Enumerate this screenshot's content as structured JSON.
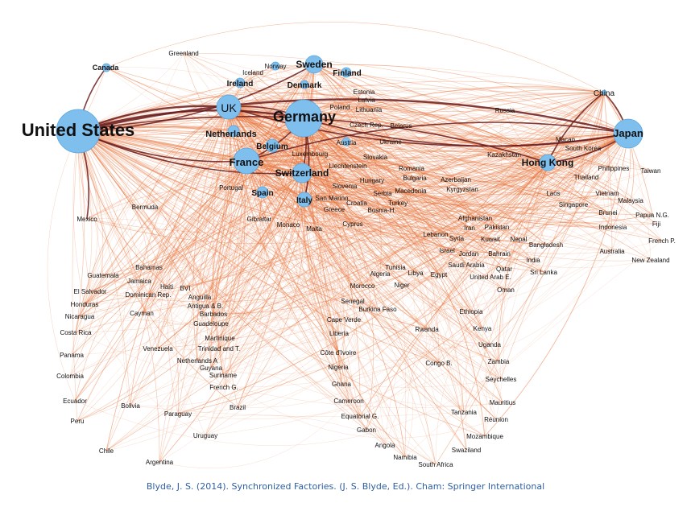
{
  "caption": "Blyde, J. S. (2014). Synchronized Factories. (J. S. Blyde, Ed.). Cham: Springer International",
  "colors": {
    "edge": "#e8743b",
    "strong_edge": "#6b1a1a",
    "node": "#7fbfee",
    "node_stroke": "#5aa6dc"
  },
  "hubs": [
    "United States",
    "Germany",
    "UK",
    "France",
    "Switzerland",
    "Japan",
    "Hong Kong",
    "Sweden",
    "China",
    "Italy"
  ],
  "nodes": [
    {
      "id": "United States",
      "label": "United States",
      "weight": 5,
      "bold": true
    },
    {
      "id": "Germany",
      "label": "Germany",
      "weight": 4,
      "bold": true
    },
    {
      "id": "UK",
      "label": "UK",
      "weight": 3
    },
    {
      "id": "France",
      "label": "France",
      "weight": 3,
      "bold": true
    },
    {
      "id": "Switzerland",
      "label": "Switzerland",
      "weight": 2.5,
      "bold": true
    },
    {
      "id": "Japan",
      "label": "Japan",
      "weight": 3,
      "bold": true
    },
    {
      "id": "Hong Kong",
      "label": "Hong Kong",
      "weight": 2,
      "bold": true
    },
    {
      "id": "Sweden",
      "label": "Sweden",
      "weight": 2,
      "bold": true
    },
    {
      "id": "Canada",
      "label": "Canada",
      "weight": 1,
      "bold": true
    },
    {
      "id": "Norway",
      "label": "Norway",
      "weight": 1
    },
    {
      "id": "Finland",
      "label": "Finland",
      "weight": 1,
      "bold": true
    },
    {
      "id": "Denmark",
      "label": "Denmark",
      "weight": 1,
      "bold": true
    },
    {
      "id": "Ireland",
      "label": "Ireland",
      "weight": 1,
      "bold": true
    },
    {
      "id": "Netherlands",
      "label": "Netherlands",
      "weight": 1.2,
      "bold": true
    },
    {
      "id": "Belgium",
      "label": "Belgium",
      "weight": 1.2,
      "bold": true
    },
    {
      "id": "Italy",
      "label": "Italy",
      "weight": 1.5,
      "bold": true
    },
    {
      "id": "Spain",
      "label": "Spain",
      "weight": 1.2,
      "bold": true
    },
    {
      "id": "Austria",
      "label": "Austria",
      "weight": 1
    },
    {
      "id": "China",
      "label": "China",
      "weight": 0
    },
    {
      "id": "Greenland",
      "label": "Greenland"
    },
    {
      "id": "Iceland",
      "label": "Iceland"
    },
    {
      "id": "Estonia",
      "label": "Estonia"
    },
    {
      "id": "Latvia",
      "label": "Latvia"
    },
    {
      "id": "Poland",
      "label": "Poland"
    },
    {
      "id": "Lithuania",
      "label": "Lithuania"
    },
    {
      "id": "Czech Rep.",
      "label": "Czech Rep."
    },
    {
      "id": "Belarus",
      "label": "Belarus"
    },
    {
      "id": "Russia",
      "label": "Russia"
    },
    {
      "id": "Ukraine",
      "label": "Ukraine"
    },
    {
      "id": "Luxembourg",
      "label": "Luxembourg"
    },
    {
      "id": "Slovakia",
      "label": "Slovakia"
    },
    {
      "id": "Liechtenstein",
      "label": "Liechtenstein"
    },
    {
      "id": "Romania",
      "label": "Romania"
    },
    {
      "id": "Hungary",
      "label": "Hungary"
    },
    {
      "id": "Bulgaria",
      "label": "Bulgaria"
    },
    {
      "id": "Azerbaijan",
      "label": "Azerbaijan"
    },
    {
      "id": "Kazakhstan",
      "label": "Kazakhstan"
    },
    {
      "id": "Macao",
      "label": "Macao"
    },
    {
      "id": "South Korea",
      "label": "South Korea"
    },
    {
      "id": "Philippines",
      "label": "Philippines"
    },
    {
      "id": "Taiwan",
      "label": "Taiwan"
    },
    {
      "id": "Thailand",
      "label": "Thailand"
    },
    {
      "id": "Malaysia",
      "label": "Malaysia"
    },
    {
      "id": "Vietnam",
      "label": "Vietnam"
    },
    {
      "id": "Laos",
      "label": "Laos"
    },
    {
      "id": "Singapore",
      "label": "Singapore"
    },
    {
      "id": "Brunei",
      "label": "Brunei"
    },
    {
      "id": "Papua N.G.",
      "label": "Papua N.G."
    },
    {
      "id": "Fiji",
      "label": "Fiji"
    },
    {
      "id": "Indonesia",
      "label": "Indonesia"
    },
    {
      "id": "French P.",
      "label": "French P."
    },
    {
      "id": "Australia",
      "label": "Australia"
    },
    {
      "id": "New Zealand",
      "label": "New Zealand"
    },
    {
      "id": "Portugal",
      "label": "Portugal"
    },
    {
      "id": "Slovenia",
      "label": "Slovenia"
    },
    {
      "id": "Serbia",
      "label": "Serbia"
    },
    {
      "id": "Macedonia",
      "label": "Macedonia"
    },
    {
      "id": "Kyrgyzstan",
      "label": "Kyrgyzstan"
    },
    {
      "id": "San Marino",
      "label": "San Marino"
    },
    {
      "id": "Croatia",
      "label": "Croatia"
    },
    {
      "id": "Turkey",
      "label": "Turkey"
    },
    {
      "id": "Greece",
      "label": "Greece"
    },
    {
      "id": "Bosnia-H.",
      "label": "Bosnia-H."
    },
    {
      "id": "Gibraltar",
      "label": "Gibraltar"
    },
    {
      "id": "Monaco",
      "label": "Monaco"
    },
    {
      "id": "Malta",
      "label": "Malta"
    },
    {
      "id": "Cyprus",
      "label": "Cyprus"
    },
    {
      "id": "Afghanistan",
      "label": "Afghanistan"
    },
    {
      "id": "Iran",
      "label": "Iran"
    },
    {
      "id": "Pakistan",
      "label": "Pakistan"
    },
    {
      "id": "Lebanon",
      "label": "Lebanon"
    },
    {
      "id": "Syria",
      "label": "Syria"
    },
    {
      "id": "Kuwait",
      "label": "Kuwait"
    },
    {
      "id": "Nepal",
      "label": "Nepal"
    },
    {
      "id": "Bangladesh",
      "label": "Bangladesh"
    },
    {
      "id": "Israel",
      "label": "Israel"
    },
    {
      "id": "Jordan",
      "label": "Jordan"
    },
    {
      "id": "Bahrain",
      "label": "Bahrain"
    },
    {
      "id": "India",
      "label": "India"
    },
    {
      "id": "Saudi Arabia",
      "label": "Saudi Arabia"
    },
    {
      "id": "Qatar",
      "label": "Qatar"
    },
    {
      "id": "Sri Lanka",
      "label": "Sri Lanka"
    },
    {
      "id": "United Arab E.",
      "label": "United Arab E."
    },
    {
      "id": "Oman",
      "label": "Oman"
    },
    {
      "id": "Mexico",
      "label": "Mexico"
    },
    {
      "id": "Bermuda",
      "label": "Bermuda"
    },
    {
      "id": "Guatemala",
      "label": "Guatemala"
    },
    {
      "id": "Bahamas",
      "label": "Bahamas"
    },
    {
      "id": "Jamaica",
      "label": "Jamaica"
    },
    {
      "id": "Haiti",
      "label": "Haiti"
    },
    {
      "id": "El Salvador",
      "label": "El Salvador"
    },
    {
      "id": "Dominican Rep.",
      "label": "Dominican Rep."
    },
    {
      "id": "BVI",
      "label": "BVI"
    },
    {
      "id": "Honduras",
      "label": "Honduras"
    },
    {
      "id": "Anguilla",
      "label": "Anguilla"
    },
    {
      "id": "Antigua & B.",
      "label": "Antigua & B."
    },
    {
      "id": "Nicaragua",
      "label": "Nicaragua"
    },
    {
      "id": "Cayman",
      "label": "Cayman"
    },
    {
      "id": "Barbados",
      "label": "Barbados"
    },
    {
      "id": "Guadeloupe",
      "label": "Guadeloupe"
    },
    {
      "id": "Costa Rica",
      "label": "Costa Rica"
    },
    {
      "id": "Martinique",
      "label": "Martinique"
    },
    {
      "id": "Venezuela",
      "label": "Venezuela"
    },
    {
      "id": "Trinidad and T.",
      "label": "Trinidad and T."
    },
    {
      "id": "Panama",
      "label": "Panama"
    },
    {
      "id": "Netherlands A",
      "label": "Netherlands A"
    },
    {
      "id": "Guyana",
      "label": "Guyana"
    },
    {
      "id": "Colombia",
      "label": "Colombia"
    },
    {
      "id": "Suriname",
      "label": "Suriname"
    },
    {
      "id": "French G.",
      "label": "French G."
    },
    {
      "id": "Ecuador",
      "label": "Ecuador"
    },
    {
      "id": "Brazil",
      "label": "Brazil"
    },
    {
      "id": "Bolivia",
      "label": "Bolivia"
    },
    {
      "id": "Peru",
      "label": "Peru"
    },
    {
      "id": "Paraguay",
      "label": "Paraguay"
    },
    {
      "id": "Uruguay",
      "label": "Uruguay"
    },
    {
      "id": "Chile",
      "label": "Chile"
    },
    {
      "id": "Argentina",
      "label": "Argentina"
    },
    {
      "id": "Tunisia",
      "label": "Tunisia"
    },
    {
      "id": "Algeria",
      "label": "Algeria"
    },
    {
      "id": "Libya",
      "label": "Libya"
    },
    {
      "id": "Egypt",
      "label": "Egypt"
    },
    {
      "id": "Morocco",
      "label": "Morocco"
    },
    {
      "id": "Niger",
      "label": "Niger"
    },
    {
      "id": "Senegal",
      "label": "Senegal"
    },
    {
      "id": "Burkina Faso",
      "label": "Burkina Faso"
    },
    {
      "id": "Ethiopia",
      "label": "Ethiopia"
    },
    {
      "id": "Cape Verde",
      "label": "Cape Verde"
    },
    {
      "id": "Rwanda",
      "label": "Rwanda"
    },
    {
      "id": "Kenya",
      "label": "Kenya"
    },
    {
      "id": "Liberia",
      "label": "Liberia"
    },
    {
      "id": "Uganda",
      "label": "Uganda"
    },
    {
      "id": "Côte d'Ivoire",
      "label": "Côte d'Ivoire"
    },
    {
      "id": "Zambia",
      "label": "Zambia"
    },
    {
      "id": "Nigeria",
      "label": "Nigeria"
    },
    {
      "id": "Congo B.",
      "label": "Congo B."
    },
    {
      "id": "Seychelles",
      "label": "Seychelles"
    },
    {
      "id": "Ghana",
      "label": "Ghana"
    },
    {
      "id": "Mauritius",
      "label": "Mauritius"
    },
    {
      "id": "Cameroon",
      "label": "Cameroon"
    },
    {
      "id": "Tanzania",
      "label": "Tanzania"
    },
    {
      "id": "Réunion",
      "label": "Réunion"
    },
    {
      "id": "Equatorial G.",
      "label": "Equatorial G."
    },
    {
      "id": "Gabon",
      "label": "Gabon"
    },
    {
      "id": "Mozambique",
      "label": "Mozambique"
    },
    {
      "id": "Angola",
      "label": "Angola"
    },
    {
      "id": "Swaziland",
      "label": "Swaziland"
    },
    {
      "id": "Namibia",
      "label": "Namibia"
    },
    {
      "id": "South Africa",
      "label": "South Africa"
    }
  ],
  "strong_links": [
    [
      "United States",
      "Germany"
    ],
    [
      "United States",
      "Japan"
    ],
    [
      "United States",
      "UK"
    ],
    [
      "United States",
      "France"
    ],
    [
      "United States",
      "Canada"
    ],
    [
      "United States",
      "Switzerland"
    ],
    [
      "United States",
      "Mexico"
    ],
    [
      "United States",
      "Sweden"
    ],
    [
      "United States",
      "Hong Kong"
    ],
    [
      "Germany",
      "Japan"
    ],
    [
      "Germany",
      "France"
    ],
    [
      "Germany",
      "UK"
    ],
    [
      "Germany",
      "Switzerland"
    ],
    [
      "Japan",
      "China"
    ],
    [
      "Japan",
      "Hong Kong"
    ],
    [
      "China",
      "Hong Kong"
    ],
    [
      "Germany",
      "Italy"
    ],
    [
      "UK",
      "Japan"
    ],
    [
      "France",
      "Japan"
    ]
  ]
}
